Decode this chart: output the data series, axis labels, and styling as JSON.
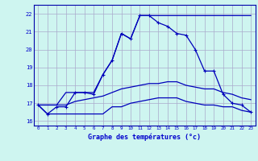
{
  "xlabel": "Graphe des températures (°c)",
  "bg_color": "#cef5f0",
  "grid_color": "#aaaacc",
  "line_color": "#0000bb",
  "ylim": [
    15.75,
    22.5
  ],
  "xlim": [
    -0.5,
    23.5
  ],
  "yticks": [
    16,
    17,
    18,
    19,
    20,
    21,
    22
  ],
  "xticks": [
    0,
    1,
    2,
    3,
    4,
    5,
    6,
    7,
    8,
    9,
    10,
    11,
    12,
    13,
    14,
    15,
    16,
    17,
    18,
    19,
    20,
    21,
    22,
    23
  ],
  "x_hours": [
    0,
    1,
    2,
    3,
    4,
    5,
    6,
    7,
    8,
    9,
    10,
    11,
    12,
    13,
    14,
    15,
    16,
    17,
    18,
    19,
    20,
    21,
    22,
    23
  ],
  "curve_main": [
    16.9,
    16.4,
    16.8,
    16.8,
    17.6,
    17.6,
    17.5,
    18.6,
    19.4,
    20.9,
    20.6,
    21.9,
    21.9,
    21.5,
    21.3,
    20.9,
    20.8,
    20.0,
    18.8,
    18.8,
    17.5,
    17.0,
    16.9,
    16.5
  ],
  "curve_max": [
    16.9,
    16.9,
    16.9,
    17.6,
    17.6,
    17.6,
    17.6,
    18.6,
    19.4,
    20.9,
    20.6,
    21.9,
    21.9,
    21.9,
    21.9,
    21.9,
    21.9,
    21.9,
    21.9,
    21.9,
    21.9,
    21.9,
    21.9,
    21.9
  ],
  "curve_min": [
    16.9,
    16.4,
    16.4,
    16.4,
    16.4,
    16.4,
    16.4,
    16.4,
    16.8,
    16.8,
    17.0,
    17.1,
    17.2,
    17.3,
    17.3,
    17.3,
    17.1,
    17.0,
    16.9,
    16.9,
    16.8,
    16.8,
    16.6,
    16.5
  ],
  "curve_avg": [
    16.9,
    16.9,
    16.9,
    16.9,
    17.1,
    17.2,
    17.3,
    17.4,
    17.6,
    17.8,
    17.9,
    18.0,
    18.1,
    18.1,
    18.2,
    18.2,
    18.0,
    17.9,
    17.8,
    17.8,
    17.6,
    17.5,
    17.3,
    17.2
  ]
}
